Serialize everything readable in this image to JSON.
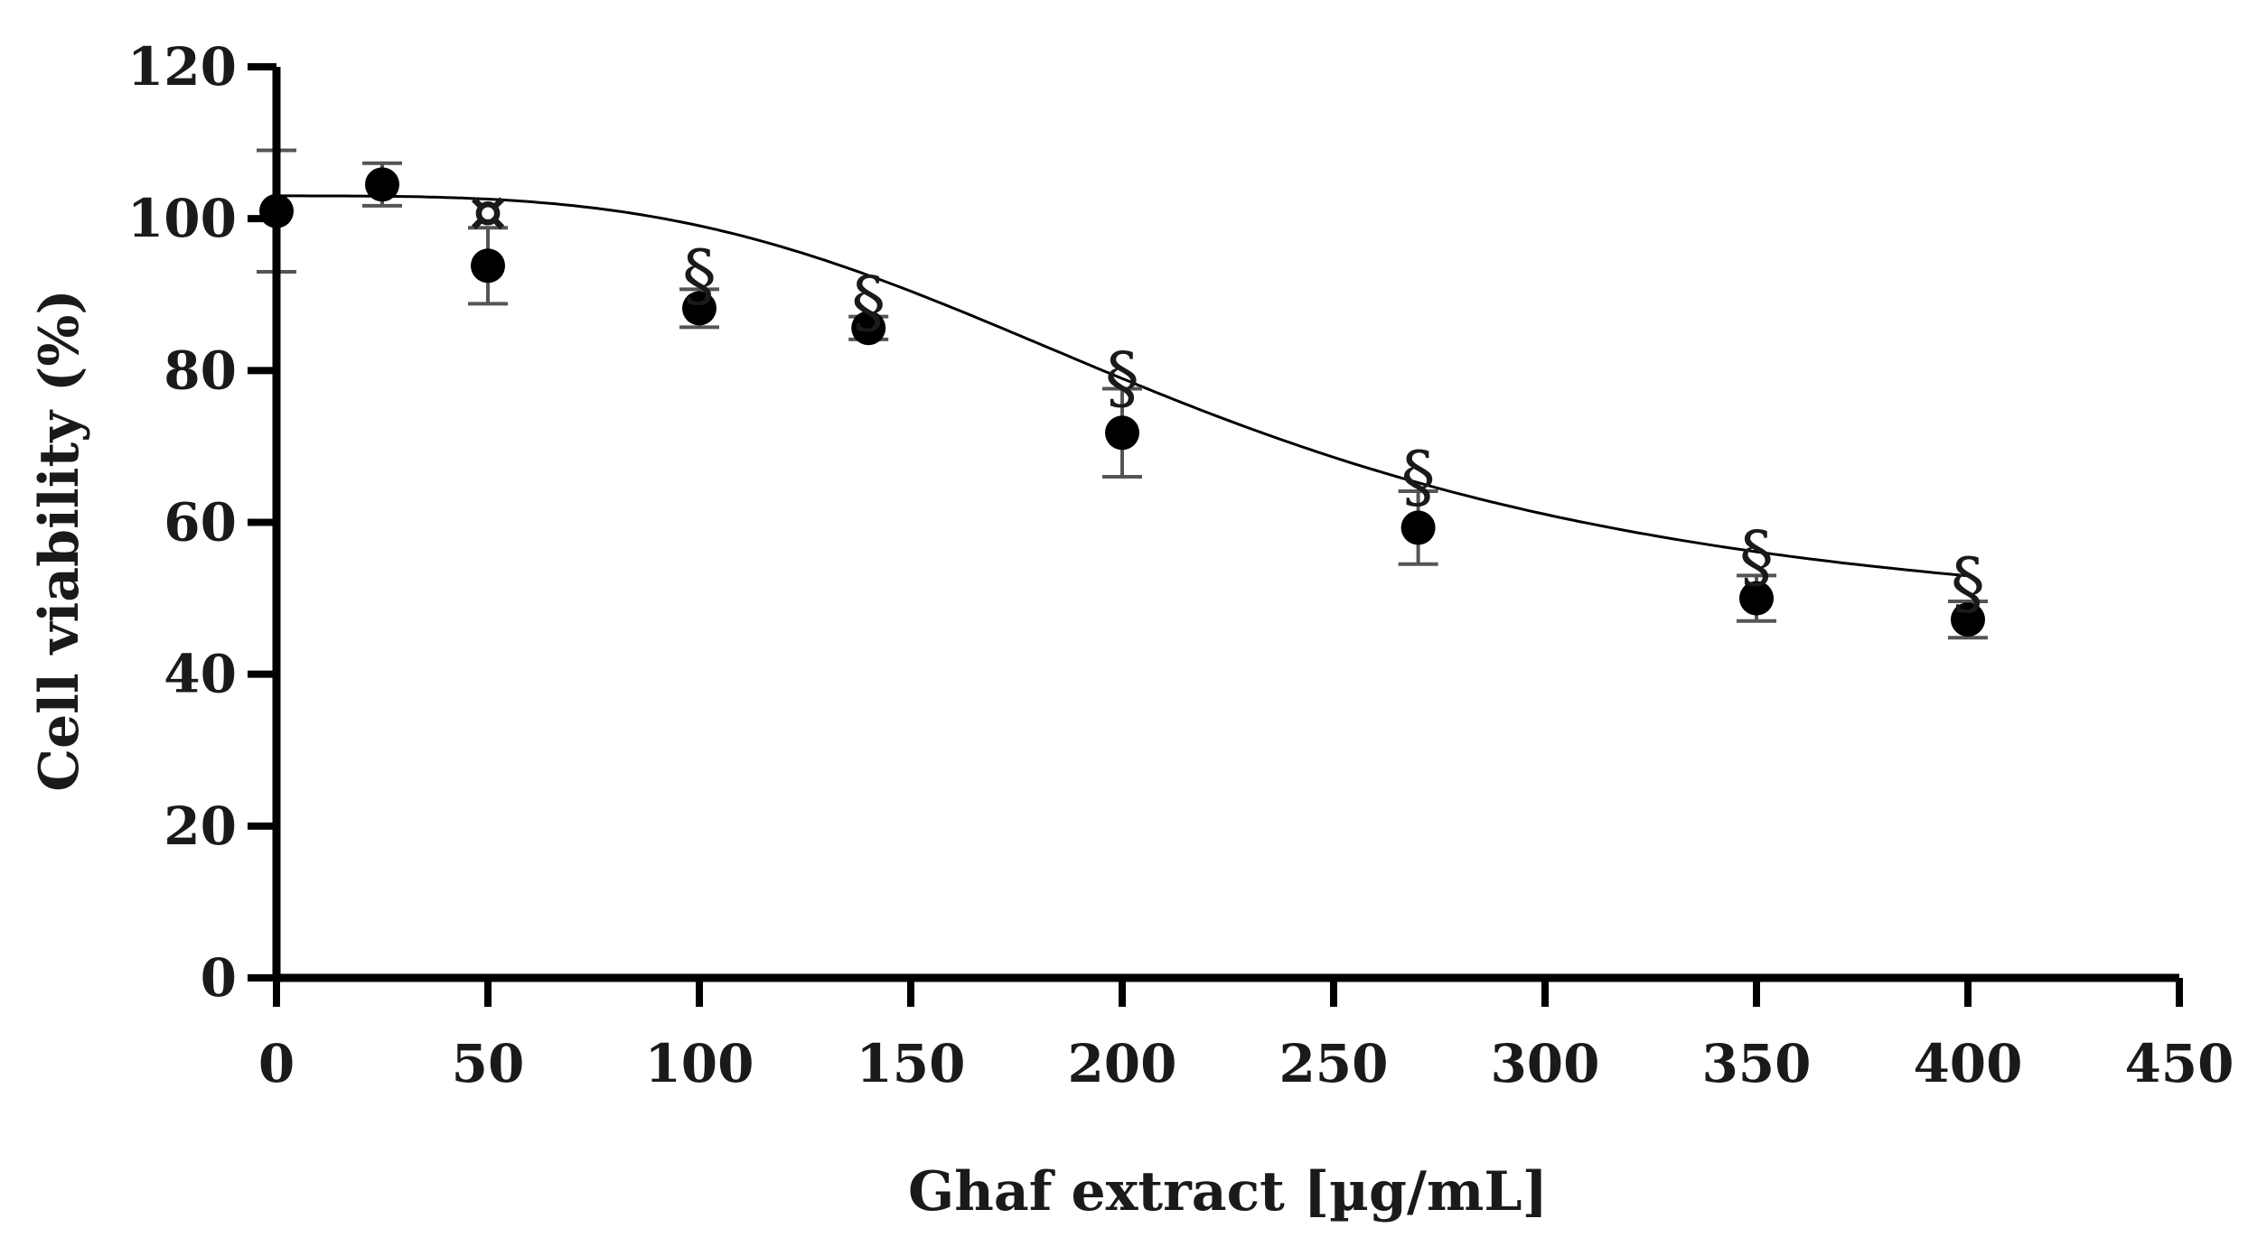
{
  "chart_data": {
    "type": "scatter",
    "title": "",
    "xlabel": "Ghaf extract [µg/mL]",
    "ylabel": "Cell viability (%)",
    "xlim": [
      0,
      450
    ],
    "ylim": [
      0,
      120
    ],
    "x_ticks": [
      0,
      50,
      100,
      150,
      200,
      250,
      300,
      350,
      400,
      450
    ],
    "y_ticks": [
      0,
      20,
      40,
      60,
      80,
      100,
      120
    ],
    "grid": false,
    "points": [
      {
        "x": 0,
        "y": 101,
        "err": 8
      },
      {
        "x": 25,
        "y": 104.5,
        "err": 2.8
      },
      {
        "x": 50,
        "y": 93.8,
        "err": 5
      },
      {
        "x": 100,
        "y": 88.2,
        "err": 2.5
      },
      {
        "x": 140,
        "y": 85.6,
        "err": 1.5
      },
      {
        "x": 200,
        "y": 71.8,
        "err": 5.8
      },
      {
        "x": 270,
        "y": 59.3,
        "err": 4.8
      },
      {
        "x": 350,
        "y": 50,
        "err": 3
      },
      {
        "x": 400,
        "y": 47.2,
        "err": 2.4
      }
    ],
    "fit_curve": {
      "top": 103,
      "bottom": 46,
      "ec50": 220,
      "hill": 3.3
    },
    "annotations": [
      {
        "x": 50,
        "y": 101,
        "text": "¤"
      },
      {
        "x": 100,
        "y": 92.5,
        "text": "§"
      },
      {
        "x": 140,
        "y": 89,
        "text": "§"
      },
      {
        "x": 200,
        "y": 79,
        "text": "§"
      },
      {
        "x": 270,
        "y": 66,
        "text": "§"
      },
      {
        "x": 350,
        "y": 55.5,
        "text": "§"
      },
      {
        "x": 400,
        "y": 52,
        "text": "§"
      }
    ]
  }
}
